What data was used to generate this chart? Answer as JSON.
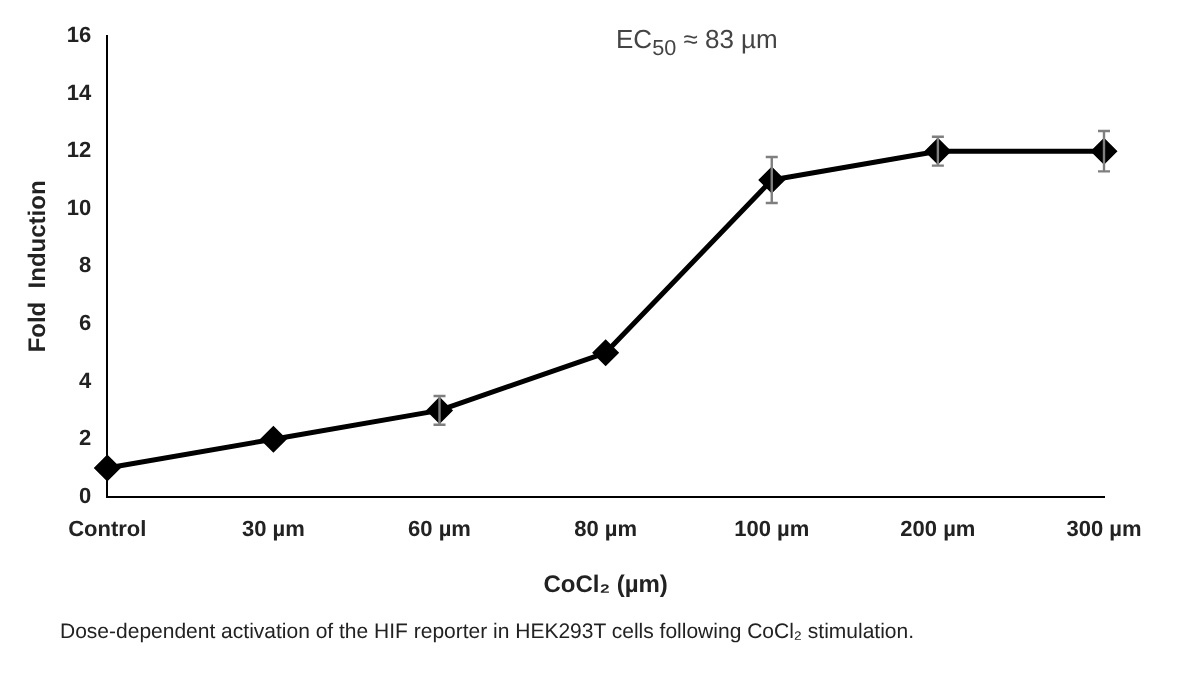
{
  "chart_data": {
    "type": "line",
    "xlabel": "CoCl₂ (µm)",
    "ylabel": "Fold  Induction",
    "categories": [
      "Control",
      "30 µm",
      "60 µm",
      "80 µm",
      "100 µm",
      "200 µm",
      "300 µm"
    ],
    "values": [
      1,
      2,
      3,
      5,
      11,
      12,
      12
    ],
    "errors": [
      null,
      null,
      0.5,
      null,
      0.8,
      0.5,
      0.7
    ],
    "color": "#000000",
    "marker": "diamond",
    "line_style": "solid",
    "ylim": [
      0,
      16
    ],
    "yticks": [
      0,
      2,
      4,
      6,
      8,
      10,
      12,
      14,
      16
    ],
    "grid": false,
    "legend": false,
    "annotations": [
      "EC$_{50}$ ≈ 83 µm",
      "Dose-dependent activation of the HIF reporter in HEK293T cells following CoCl₂ stimulation."
    ]
  }
}
